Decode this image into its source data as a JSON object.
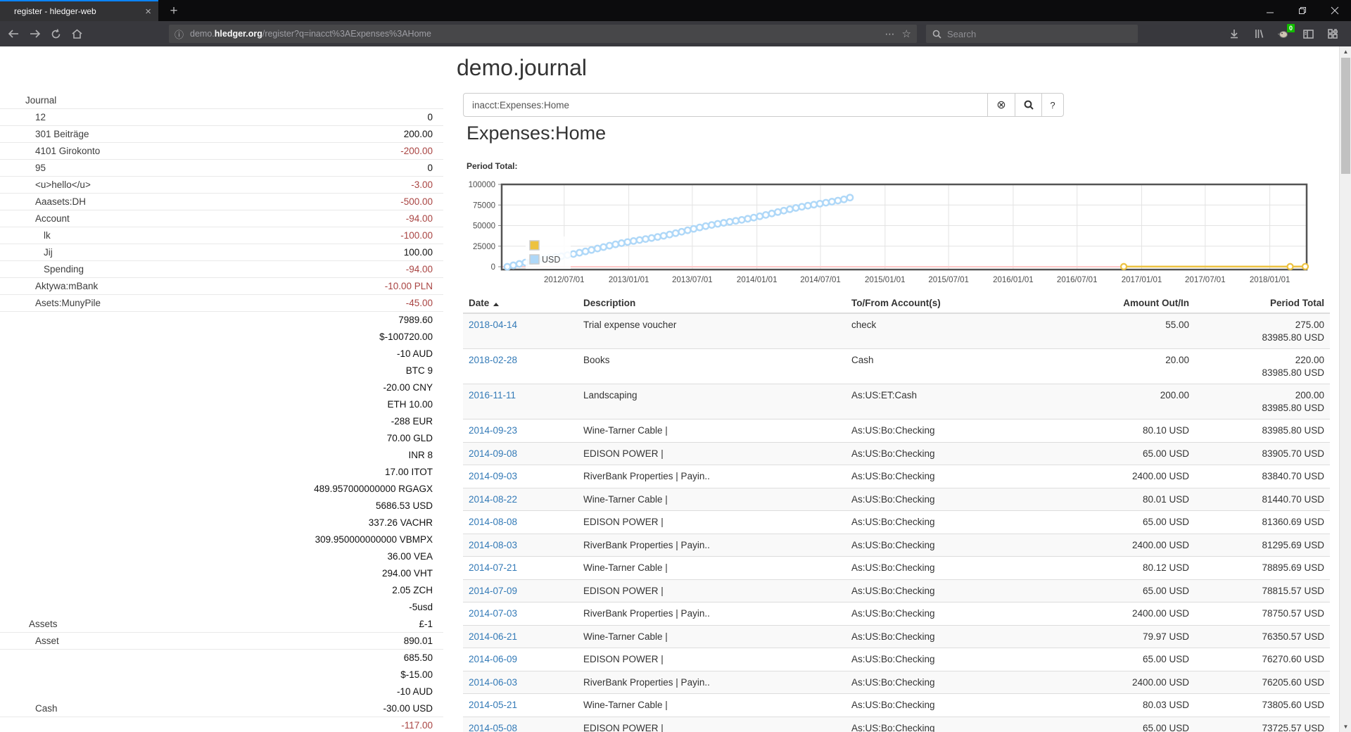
{
  "browser": {
    "tab_title": "register - hledger-web",
    "close_tab": "×",
    "new_tab": "+",
    "url_scheme_note": "info-icon",
    "url_prefix": "demo.",
    "url_domain": "hledger.org",
    "url_path": "/register?q=inacct%3AExpenses%3AHome",
    "page_actions": "⋯",
    "bookmark_star": "☆",
    "search_placeholder": "Search",
    "extension_badge": "0"
  },
  "header": {
    "title": "demo.journal"
  },
  "search": {
    "value": "inacct:Expenses:Home",
    "clear_label": "⊗",
    "help_label": "?"
  },
  "account": {
    "heading": "Expenses:Home",
    "chart_label": "Period Total:"
  },
  "sidebar": {
    "rows": [
      {
        "name": "Journal",
        "indent": 36,
        "value": "",
        "neg": false,
        "sep": true
      },
      {
        "name": "12",
        "indent": 50,
        "value": "0",
        "neg": false,
        "sep": true
      },
      {
        "name": "301 Beiträge",
        "indent": 50,
        "value": "200.00",
        "neg": false,
        "sep": true
      },
      {
        "name": "4101 Girokonto",
        "indent": 50,
        "value": "-200.00",
        "neg": true,
        "sep": true
      },
      {
        "name": "95",
        "indent": 50,
        "value": "0",
        "neg": false,
        "sep": true
      },
      {
        "name": "<u>hello</u>",
        "indent": 50,
        "value": "-3.00",
        "neg": true,
        "sep": true
      },
      {
        "name": "Aaasets:DH",
        "indent": 50,
        "value": "-500.00",
        "neg": true,
        "sep": true
      },
      {
        "name": "Account",
        "indent": 50,
        "value": "-94.00",
        "neg": true,
        "sep": true
      },
      {
        "name": "lk",
        "indent": 62,
        "value": "-100.00",
        "neg": true,
        "sep": true
      },
      {
        "name": "Jij",
        "indent": 62,
        "value": "100.00",
        "neg": false,
        "sep": true
      },
      {
        "name": "Spending",
        "indent": 62,
        "value": "-94.00",
        "neg": true,
        "sep": true
      },
      {
        "name": "Aktywa:mBank",
        "indent": 50,
        "value": "-10.00 PLN",
        "neg": true,
        "sep": true
      },
      {
        "name": "Asets:MunyPile",
        "indent": 50,
        "value": "-45.00",
        "neg": true,
        "sep": true
      },
      {
        "name": "",
        "indent": 0,
        "value": "7989.60",
        "neg": false,
        "sep": false
      },
      {
        "name": "",
        "indent": 0,
        "value": "$-100720.00",
        "neg": false,
        "sep": false
      },
      {
        "name": "",
        "indent": 0,
        "value": "-10 AUD",
        "neg": false,
        "sep": false
      },
      {
        "name": "",
        "indent": 0,
        "value": "BTC 9",
        "neg": false,
        "sep": false
      },
      {
        "name": "",
        "indent": 0,
        "value": "-20.00 CNY",
        "neg": false,
        "sep": false
      },
      {
        "name": "",
        "indent": 0,
        "value": "ETH 10.00",
        "neg": false,
        "sep": false
      },
      {
        "name": "",
        "indent": 0,
        "value": "-288 EUR",
        "neg": false,
        "sep": false
      },
      {
        "name": "",
        "indent": 0,
        "value": "70.00 GLD",
        "neg": false,
        "sep": false
      },
      {
        "name": "",
        "indent": 0,
        "value": "INR 8",
        "neg": false,
        "sep": false
      },
      {
        "name": "",
        "indent": 0,
        "value": "17.00 ITOT",
        "neg": false,
        "sep": false
      },
      {
        "name": "",
        "indent": 0,
        "value": "489.957000000000 RGAGX",
        "neg": false,
        "sep": false
      },
      {
        "name": "",
        "indent": 0,
        "value": "5686.53 USD",
        "neg": false,
        "sep": false
      },
      {
        "name": "",
        "indent": 0,
        "value": "337.26 VACHR",
        "neg": false,
        "sep": false
      },
      {
        "name": "",
        "indent": 0,
        "value": "309.950000000000 VBMPX",
        "neg": false,
        "sep": false
      },
      {
        "name": "",
        "indent": 0,
        "value": "36.00 VEA",
        "neg": false,
        "sep": false
      },
      {
        "name": "",
        "indent": 0,
        "value": "294.00 VHT",
        "neg": false,
        "sep": false
      },
      {
        "name": "",
        "indent": 0,
        "value": "2.05 ZCH",
        "neg": false,
        "sep": false
      },
      {
        "name": "",
        "indent": 0,
        "value": "-5usd",
        "neg": false,
        "sep": false
      },
      {
        "name": "Assets",
        "indent": 41,
        "value": "£-1",
        "neg": false,
        "sep": true
      },
      {
        "name": "Asset",
        "indent": 50,
        "value": "890.01",
        "neg": false,
        "sep": true
      },
      {
        "name": "",
        "indent": 0,
        "value": "685.50",
        "neg": false,
        "sep": false
      },
      {
        "name": "",
        "indent": 0,
        "value": "$-15.00",
        "neg": false,
        "sep": false
      },
      {
        "name": "",
        "indent": 0,
        "value": "-10 AUD",
        "neg": false,
        "sep": false
      },
      {
        "name": "Cash",
        "indent": 50,
        "value": "-30.00 USD",
        "neg": false,
        "sep": true
      },
      {
        "name": "",
        "indent": 0,
        "value": "-117.00",
        "neg": true,
        "sep": false
      }
    ]
  },
  "table": {
    "headers": [
      "Date",
      "Description",
      "To/From Account(s)",
      "Amount Out/In",
      "Period Total"
    ],
    "rows": [
      {
        "date": "2018-04-14",
        "desc": "Trial expense voucher",
        "account": "check",
        "amount": "55.00",
        "total": "275.00",
        "total2": "83985.80 USD"
      },
      {
        "date": "2018-02-28",
        "desc": "Books",
        "account": "Cash",
        "amount": "20.00",
        "total": "220.00",
        "total2": "83985.80 USD"
      },
      {
        "date": "2016-11-11",
        "desc": "Landscaping",
        "account": "As:US:ET:Cash",
        "amount": "200.00",
        "total": "200.00",
        "total2": "83985.80 USD"
      },
      {
        "date": "2014-09-23",
        "desc": "Wine-Tarner Cable |",
        "account": "As:US:Bo:Checking",
        "amount": "80.10 USD",
        "total": "83985.80 USD"
      },
      {
        "date": "2014-09-08",
        "desc": "EDISON POWER |",
        "account": "As:US:Bo:Checking",
        "amount": "65.00 USD",
        "total": "83905.70 USD"
      },
      {
        "date": "2014-09-03",
        "desc": "RiverBank Properties | Payin..",
        "account": "As:US:Bo:Checking",
        "amount": "2400.00 USD",
        "total": "83840.70 USD"
      },
      {
        "date": "2014-08-22",
        "desc": "Wine-Tarner Cable |",
        "account": "As:US:Bo:Checking",
        "amount": "80.01 USD",
        "total": "81440.70 USD"
      },
      {
        "date": "2014-08-08",
        "desc": "EDISON POWER |",
        "account": "As:US:Bo:Checking",
        "amount": "65.00 USD",
        "total": "81360.69 USD"
      },
      {
        "date": "2014-08-03",
        "desc": "RiverBank Properties | Payin..",
        "account": "As:US:Bo:Checking",
        "amount": "2400.00 USD",
        "total": "81295.69 USD"
      },
      {
        "date": "2014-07-21",
        "desc": "Wine-Tarner Cable |",
        "account": "As:US:Bo:Checking",
        "amount": "80.12 USD",
        "total": "78895.69 USD"
      },
      {
        "date": "2014-07-09",
        "desc": "EDISON POWER |",
        "account": "As:US:Bo:Checking",
        "amount": "65.00 USD",
        "total": "78815.57 USD"
      },
      {
        "date": "2014-07-03",
        "desc": "RiverBank Properties | Payin..",
        "account": "As:US:Bo:Checking",
        "amount": "2400.00 USD",
        "total": "78750.57 USD"
      },
      {
        "date": "2014-06-21",
        "desc": "Wine-Tarner Cable |",
        "account": "As:US:Bo:Checking",
        "amount": "79.97 USD",
        "total": "76350.57 USD"
      },
      {
        "date": "2014-06-09",
        "desc": "EDISON POWER |",
        "account": "As:US:Bo:Checking",
        "amount": "65.00 USD",
        "total": "76270.60 USD"
      },
      {
        "date": "2014-06-03",
        "desc": "RiverBank Properties | Payin..",
        "account": "As:US:Bo:Checking",
        "amount": "2400.00 USD",
        "total": "76205.60 USD"
      },
      {
        "date": "2014-05-21",
        "desc": "Wine-Tarner Cable |",
        "account": "As:US:Bo:Checking",
        "amount": "80.03 USD",
        "total": "73805.60 USD"
      },
      {
        "date": "2014-05-08",
        "desc": "EDISON POWER |",
        "account": "As:US:Bo:Checking",
        "amount": "65.00 USD",
        "total": "73725.57 USD"
      }
    ]
  },
  "chart_data": {
    "type": "line",
    "title": "Period Total:",
    "x_domain": [
      "2012-01-05",
      "2018-04-16"
    ],
    "x_tick_dates": [
      "2012-07-01",
      "2013-01-01",
      "2013-07-01",
      "2014-01-01",
      "2014-07-01",
      "2015-01-01",
      "2015-07-01",
      "2016-01-01",
      "2016-07-01",
      "2017-01-01",
      "2017-07-01",
      "2018-01-01"
    ],
    "x_tick_labels": [
      "2012/07/01",
      "2013/01/01",
      "2013/07/01",
      "2014/01/01",
      "2014/07/01",
      "2015/01/01",
      "2015/07/01",
      "2016/01/01",
      "2016/07/01",
      "2017/01/01",
      "2017/07/01",
      "2018/01/01"
    ],
    "ylim": [
      0,
      100000
    ],
    "y_ticks": [
      0,
      25000,
      50000,
      75000,
      100000
    ],
    "grid": true,
    "legend_position": "bottom-left-inside",
    "legend": [
      {
        "label": "",
        "color": "#edc240"
      },
      {
        "label": "USD",
        "color": "#afd8f8"
      }
    ],
    "zero_line_color": "#ffc8c8",
    "plot_border_color": "#545454",
    "series": [
      {
        "name": "",
        "color": "#edc240",
        "type": "points-line",
        "points": [
          [
            "2016-11-11",
            200
          ],
          [
            "2018-02-28",
            220
          ],
          [
            "2018-04-14",
            275
          ]
        ]
      },
      {
        "name": "USD",
        "color": "#afd8f8",
        "type": "cumulative-line",
        "start": [
          "2012-01-21",
          0
        ],
        "end": [
          "2014-09-23",
          83985.8
        ],
        "marker_count": 58,
        "known_points": [
          [
            "2014-05-08",
            73725.57
          ],
          [
            "2014-05-21",
            73805.6
          ],
          [
            "2014-06-03",
            76205.6
          ],
          [
            "2014-06-09",
            76270.6
          ],
          [
            "2014-06-21",
            76350.57
          ],
          [
            "2014-07-03",
            78750.57
          ],
          [
            "2014-07-09",
            78815.57
          ],
          [
            "2014-07-21",
            78895.69
          ],
          [
            "2014-08-03",
            81295.69
          ],
          [
            "2014-08-08",
            81360.69
          ],
          [
            "2014-08-22",
            81440.7
          ],
          [
            "2014-09-03",
            83840.7
          ],
          [
            "2014-09-08",
            83905.7
          ],
          [
            "2014-09-23",
            83985.8
          ]
        ]
      }
    ]
  }
}
